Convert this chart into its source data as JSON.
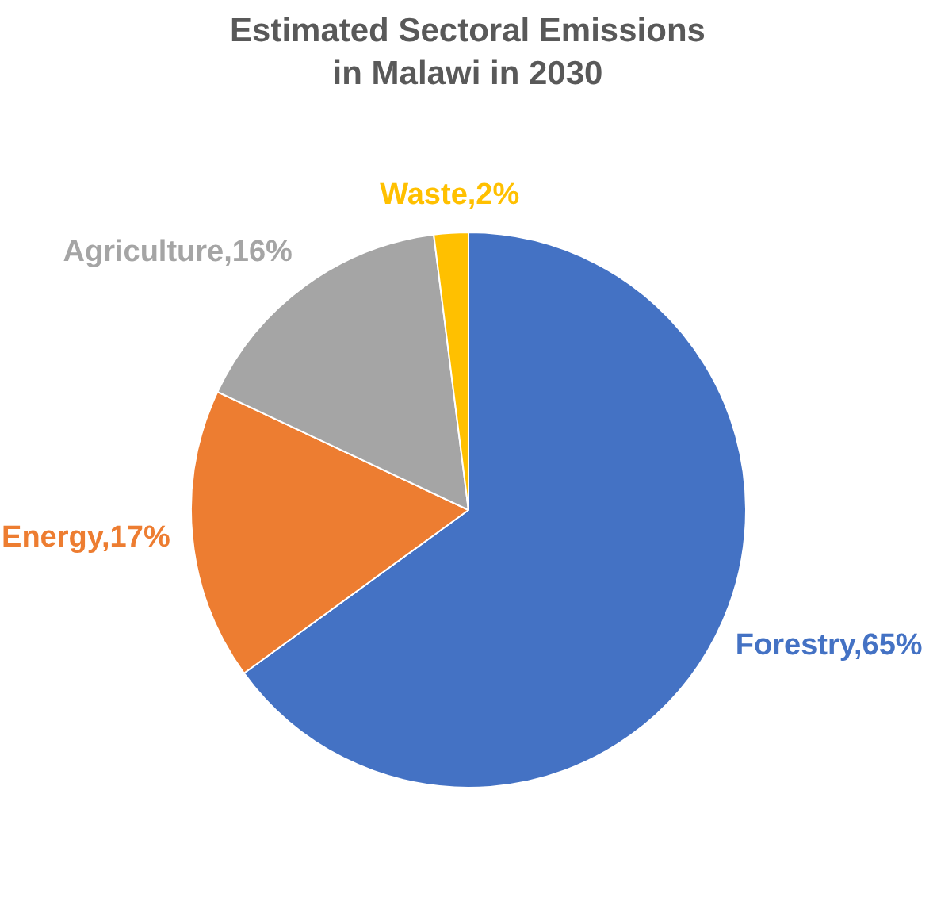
{
  "chart_data": {
    "type": "pie",
    "title": "Estimated Sectoral Emissions in Malawi in 2030",
    "categories": [
      "Forestry",
      "Energy",
      "Agriculture",
      "Waste"
    ],
    "values": [
      65,
      17,
      16,
      2
    ],
    "colors": [
      "#4472c4",
      "#ed7d31",
      "#a5a5a5",
      "#ffc000"
    ],
    "value_labels": [
      "65%",
      "17%",
      "16%",
      "2%"
    ],
    "legend": false
  }
}
